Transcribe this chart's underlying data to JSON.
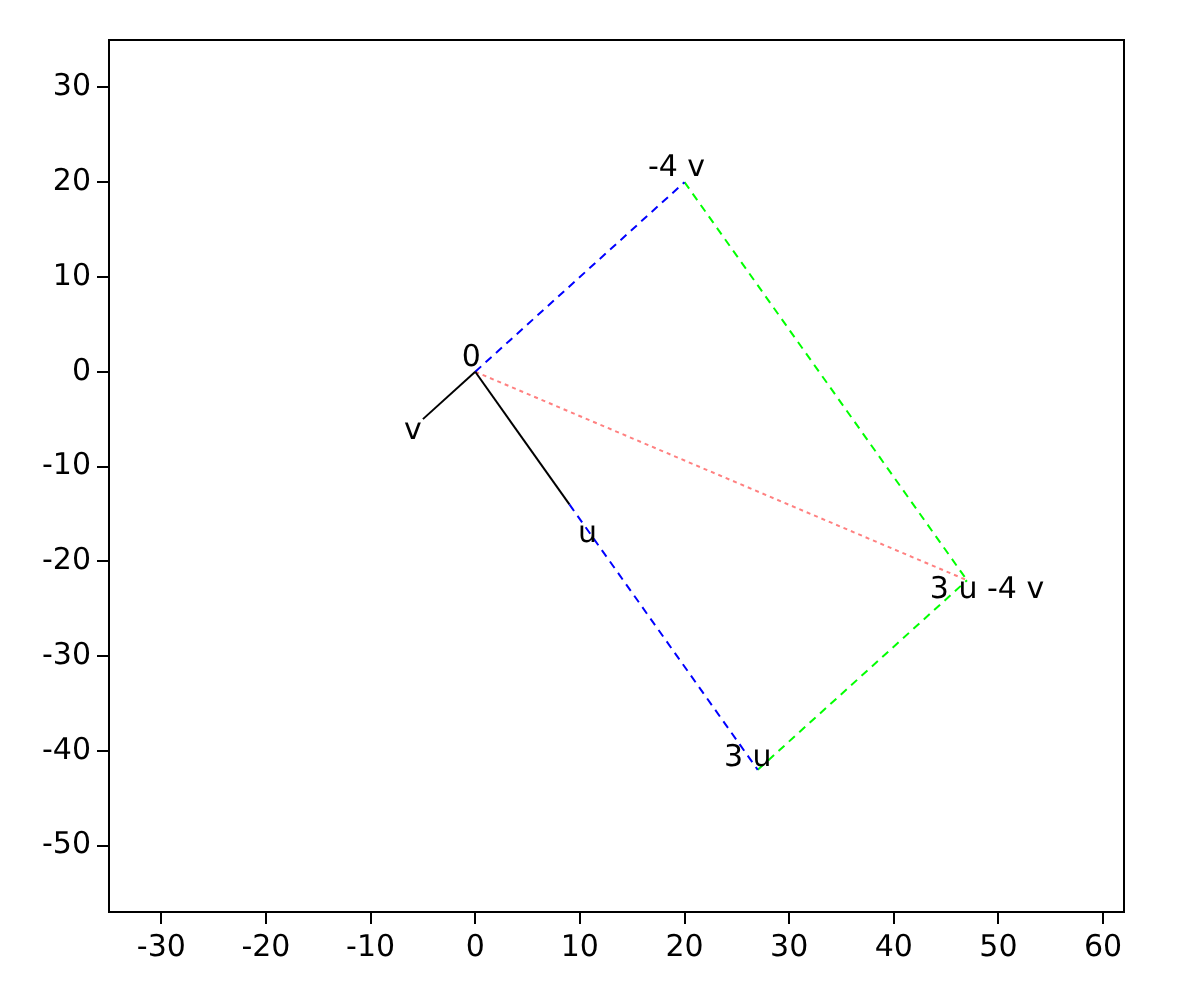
{
  "chart_data": {
    "type": "line",
    "xlim": [
      -35,
      62
    ],
    "ylim": [
      -57,
      35
    ],
    "xticks": [
      -30,
      -20,
      -10,
      0,
      10,
      20,
      30,
      40,
      50,
      60
    ],
    "yticks": [
      -50,
      -40,
      -30,
      -20,
      -10,
      0,
      10,
      20,
      30
    ],
    "grid": false,
    "legend": false,
    "marker": "none",
    "series": [
      {
        "color": "#000000",
        "x": [
          0,
          9
        ],
        "values": [
          0,
          -14
        ],
        "line_style": "solid"
      },
      {
        "color": "#000000",
        "x": [
          0,
          -5
        ],
        "values": [
          0,
          -5
        ],
        "line_style": "solid"
      },
      {
        "color": "#0000ff",
        "x": [
          0,
          20
        ],
        "values": [
          0,
          20
        ],
        "line_style": "dashed"
      },
      {
        "color": "#0000ff",
        "x": [
          9,
          27
        ],
        "values": [
          -14,
          -42
        ],
        "line_style": "dashed"
      },
      {
        "color": "#00ff00",
        "x": [
          20,
          47
        ],
        "values": [
          20,
          -22
        ],
        "line_style": "dashed"
      },
      {
        "color": "#00ff00",
        "x": [
          27,
          47
        ],
        "values": [
          -42,
          -22
        ],
        "line_style": "dashed"
      },
      {
        "color": "#ff8080",
        "x": [
          0,
          47
        ],
        "values": [
          0,
          -22
        ],
        "line_style": "dotted"
      }
    ],
    "annotations": [
      {
        "text": "0",
        "x": 0,
        "y": 0
      },
      {
        "text": "v",
        "x": -5,
        "y": -5
      },
      {
        "text": "u",
        "x": 9,
        "y": -14
      },
      {
        "text": "3 u",
        "x": 27,
        "y": -42
      },
      {
        "text": "-4 v",
        "x": 20,
        "y": 20
      },
      {
        "text": "3 u -4 v",
        "x": 47,
        "y": -22
      }
    ]
  }
}
